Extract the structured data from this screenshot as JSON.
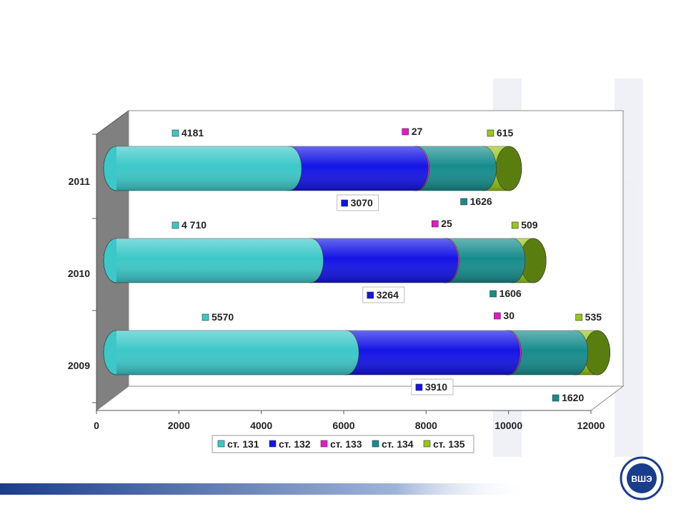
{
  "chart_data": {
    "type": "bar",
    "orientation": "horizontal",
    "stacked": true,
    "style": "3d-cylinder",
    "categories": [
      "2009",
      "2010",
      "2011"
    ],
    "series": [
      {
        "name": "ст. 131",
        "color": "#3cc8c8",
        "values": [
          5570,
          4710,
          4181
        ],
        "labels": [
          "5570",
          "4 710",
          "4181"
        ]
      },
      {
        "name": "ст. 132",
        "color": "#1414e6",
        "values": [
          3910,
          3264,
          3070
        ],
        "labels": [
          "3910",
          "3264",
          "3070"
        ]
      },
      {
        "name": "ст. 133",
        "color": "#e619c8",
        "values": [
          30,
          25,
          27
        ],
        "labels": [
          "30",
          "25",
          "27"
        ]
      },
      {
        "name": "ст. 134",
        "color": "#168c8c",
        "values": [
          1620,
          1606,
          1626
        ],
        "labels": [
          "1620",
          "1606",
          "1626"
        ]
      },
      {
        "name": "ст. 135",
        "color": "#96c814",
        "values": [
          535,
          509,
          615
        ],
        "labels": [
          "535",
          "509",
          "615"
        ]
      }
    ],
    "xlim": [
      0,
      12000
    ],
    "xticks": [
      "0",
      "2000",
      "4000",
      "6000",
      "8000",
      "10000",
      "12000"
    ],
    "legend_position": "bottom",
    "grid": false
  },
  "colors": {
    "wall": "#808080",
    "bottom_stripe": "#1a3c8c"
  },
  "logo_text": "ВШЭ"
}
